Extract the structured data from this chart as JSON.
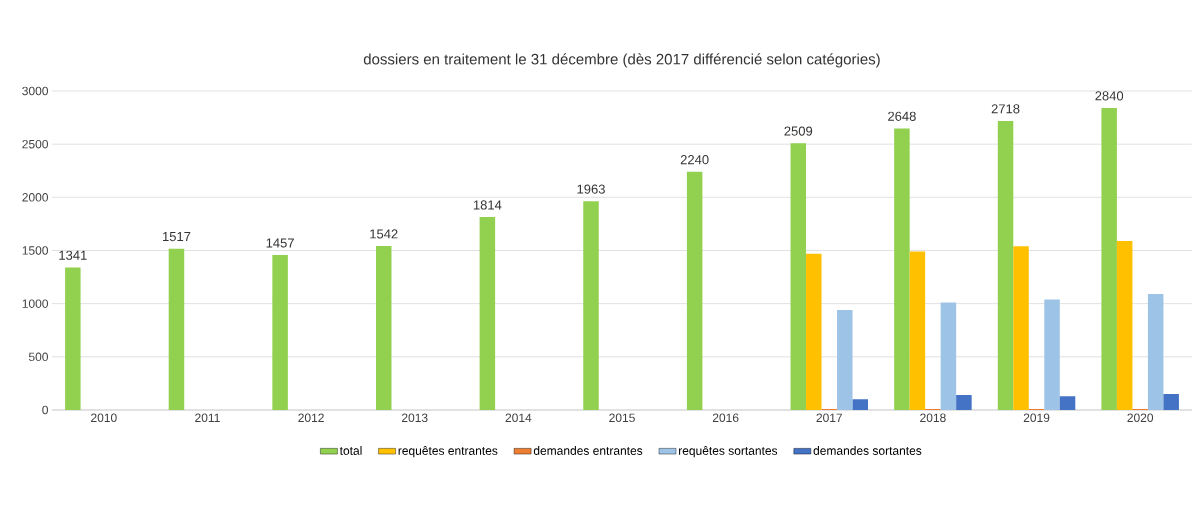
{
  "chart_data": {
    "type": "bar",
    "title": "dossiers en traitement le 31 décembre (dès 2017 différencié selon catégories)",
    "categories": [
      "2010",
      "2011",
      "2012",
      "2013",
      "2014",
      "2015",
      "2016",
      "2017",
      "2018",
      "2019",
      "2020"
    ],
    "series": [
      {
        "name": "total",
        "color": "#92d050",
        "values": [
          1341,
          1517,
          1457,
          1542,
          1814,
          1963,
          2240,
          2509,
          2648,
          2718,
          2840
        ],
        "value_labels": [
          "1341",
          "1517",
          "1457",
          "1542",
          "1814",
          "1963",
          "2240",
          "2509",
          "2648",
          "2718",
          "2840"
        ]
      },
      {
        "name": "requêtes entrantes",
        "color": "#ffc000",
        "values": [
          null,
          null,
          null,
          null,
          null,
          null,
          null,
          1470,
          1490,
          1540,
          1590
        ]
      },
      {
        "name": "demandes entrantes",
        "color": "#ed7d31",
        "values": [
          null,
          null,
          null,
          null,
          null,
          null,
          null,
          10,
          10,
          10,
          10
        ]
      },
      {
        "name": "requêtes sortantes",
        "color": "#9dc3e6",
        "values": [
          null,
          null,
          null,
          null,
          null,
          null,
          null,
          940,
          1010,
          1040,
          1090
        ]
      },
      {
        "name": "demandes sortantes",
        "color": "#4472c4",
        "values": [
          null,
          null,
          null,
          null,
          null,
          null,
          null,
          100,
          140,
          130,
          150
        ]
      }
    ],
    "ylim": [
      0,
      3000
    ],
    "yticks": [
      0,
      500,
      1000,
      1500,
      2000,
      2500,
      3000
    ],
    "grid": "y",
    "legend": "bottom"
  }
}
